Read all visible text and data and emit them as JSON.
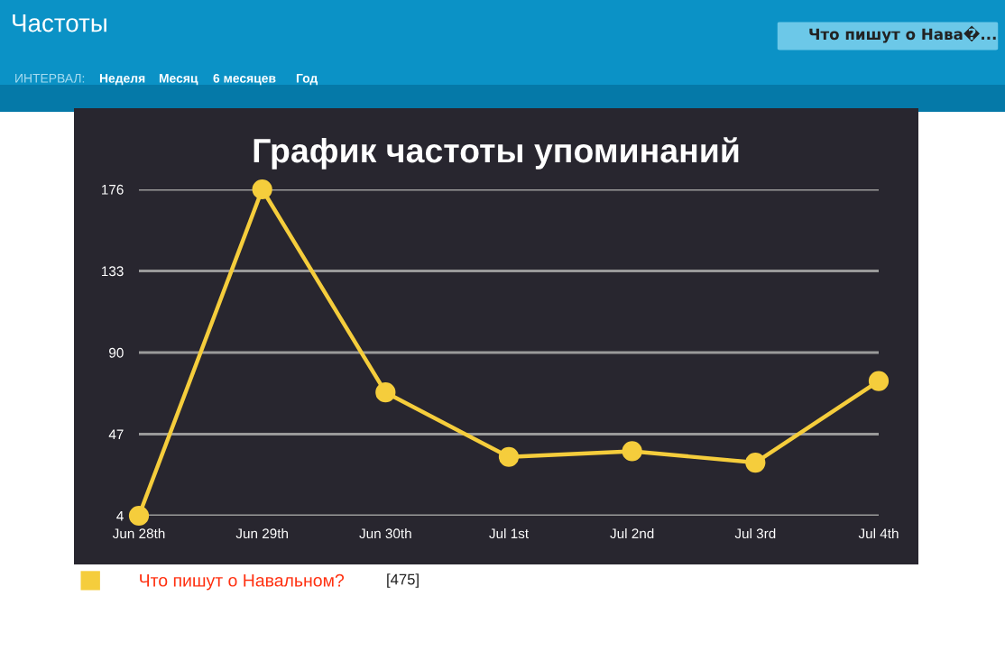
{
  "chart_data": {
    "type": "line",
    "title": "График частоты упоминаний",
    "categories": [
      "Jun 28th",
      "Jun 29th",
      "Jun 30th",
      "Jul 1st",
      "Jul 2nd",
      "Jul 3rd",
      "Jul 4th"
    ],
    "series": [
      {
        "name": "Что пишут о Навальном?",
        "color": "#f5cd3c",
        "values": [
          4,
          176,
          69,
          35,
          38,
          32,
          75
        ]
      }
    ],
    "ylim": [
      4,
      176
    ],
    "yticks": [
      4,
      47,
      90,
      133,
      176
    ],
    "grid": "y",
    "legend": "bottom left",
    "marker": "circle",
    "line_style": "solid",
    "annotations": [
      "Частоты",
      "ИНТЕРВАЛ:",
      "Неделя",
      "Месяц",
      "6 месяцев",
      "Год",
      "Что пишут о Нава�...",
      "[475]"
    ]
  }
}
